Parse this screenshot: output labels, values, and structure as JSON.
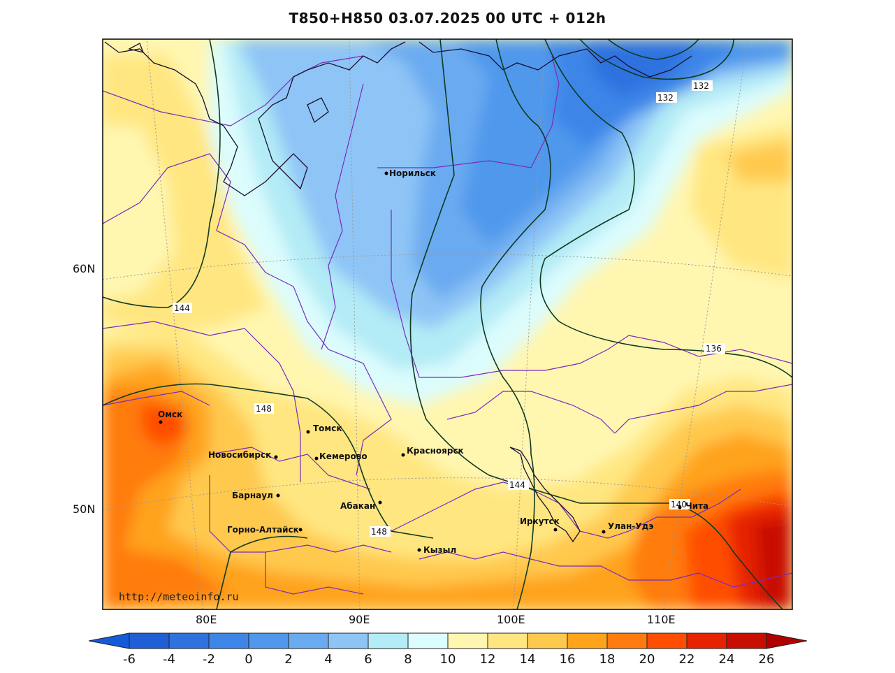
{
  "title": "T850+H850 03.07.2025 00 UTC + 012h",
  "watermark": "http://meteoinfo.ru",
  "lat_labels": [
    "60N",
    "50N"
  ],
  "lon_labels": [
    "80E",
    "90E",
    "100E",
    "110E"
  ],
  "cities": [
    {
      "name": "Норильск"
    },
    {
      "name": "Омск"
    },
    {
      "name": "Томск"
    },
    {
      "name": "Новосибирск"
    },
    {
      "name": "Кемерово"
    },
    {
      "name": "Красноярск"
    },
    {
      "name": "Барнаул"
    },
    {
      "name": "Абакан"
    },
    {
      "name": "Горно-Алтайск"
    },
    {
      "name": "Кызыл"
    },
    {
      "name": "Иркутск"
    },
    {
      "name": "Улан-Удэ"
    },
    {
      "name": "Чита"
    }
  ],
  "contour_labels": [
    "144",
    "148",
    "148",
    "144",
    "140",
    "136",
    "132",
    "132"
  ],
  "colorbar": {
    "ticks": [
      "-6",
      "-4",
      "-2",
      "0",
      "2",
      "4",
      "6",
      "8",
      "10",
      "12",
      "14",
      "16",
      "18",
      "20",
      "22",
      "24",
      "26"
    ],
    "colors": [
      "#1f5fd6",
      "#2e72e0",
      "#3d86e8",
      "#4f98ec",
      "#6aaaf0",
      "#8ec5f6",
      "#b3ebf6",
      "#dcfcfd",
      "#fff6b0",
      "#ffe680",
      "#ffc94d",
      "#ffa31a",
      "#ff7b0e",
      "#ff4e00",
      "#e62200",
      "#c80e00"
    ],
    "under_color": "#155ad8",
    "over_color": "#b00000"
  },
  "colors": {
    "boundary": "#7a2bbf",
    "coastline": "#1a1030",
    "contour": "#0f3a22",
    "graticule": "#999999"
  }
}
